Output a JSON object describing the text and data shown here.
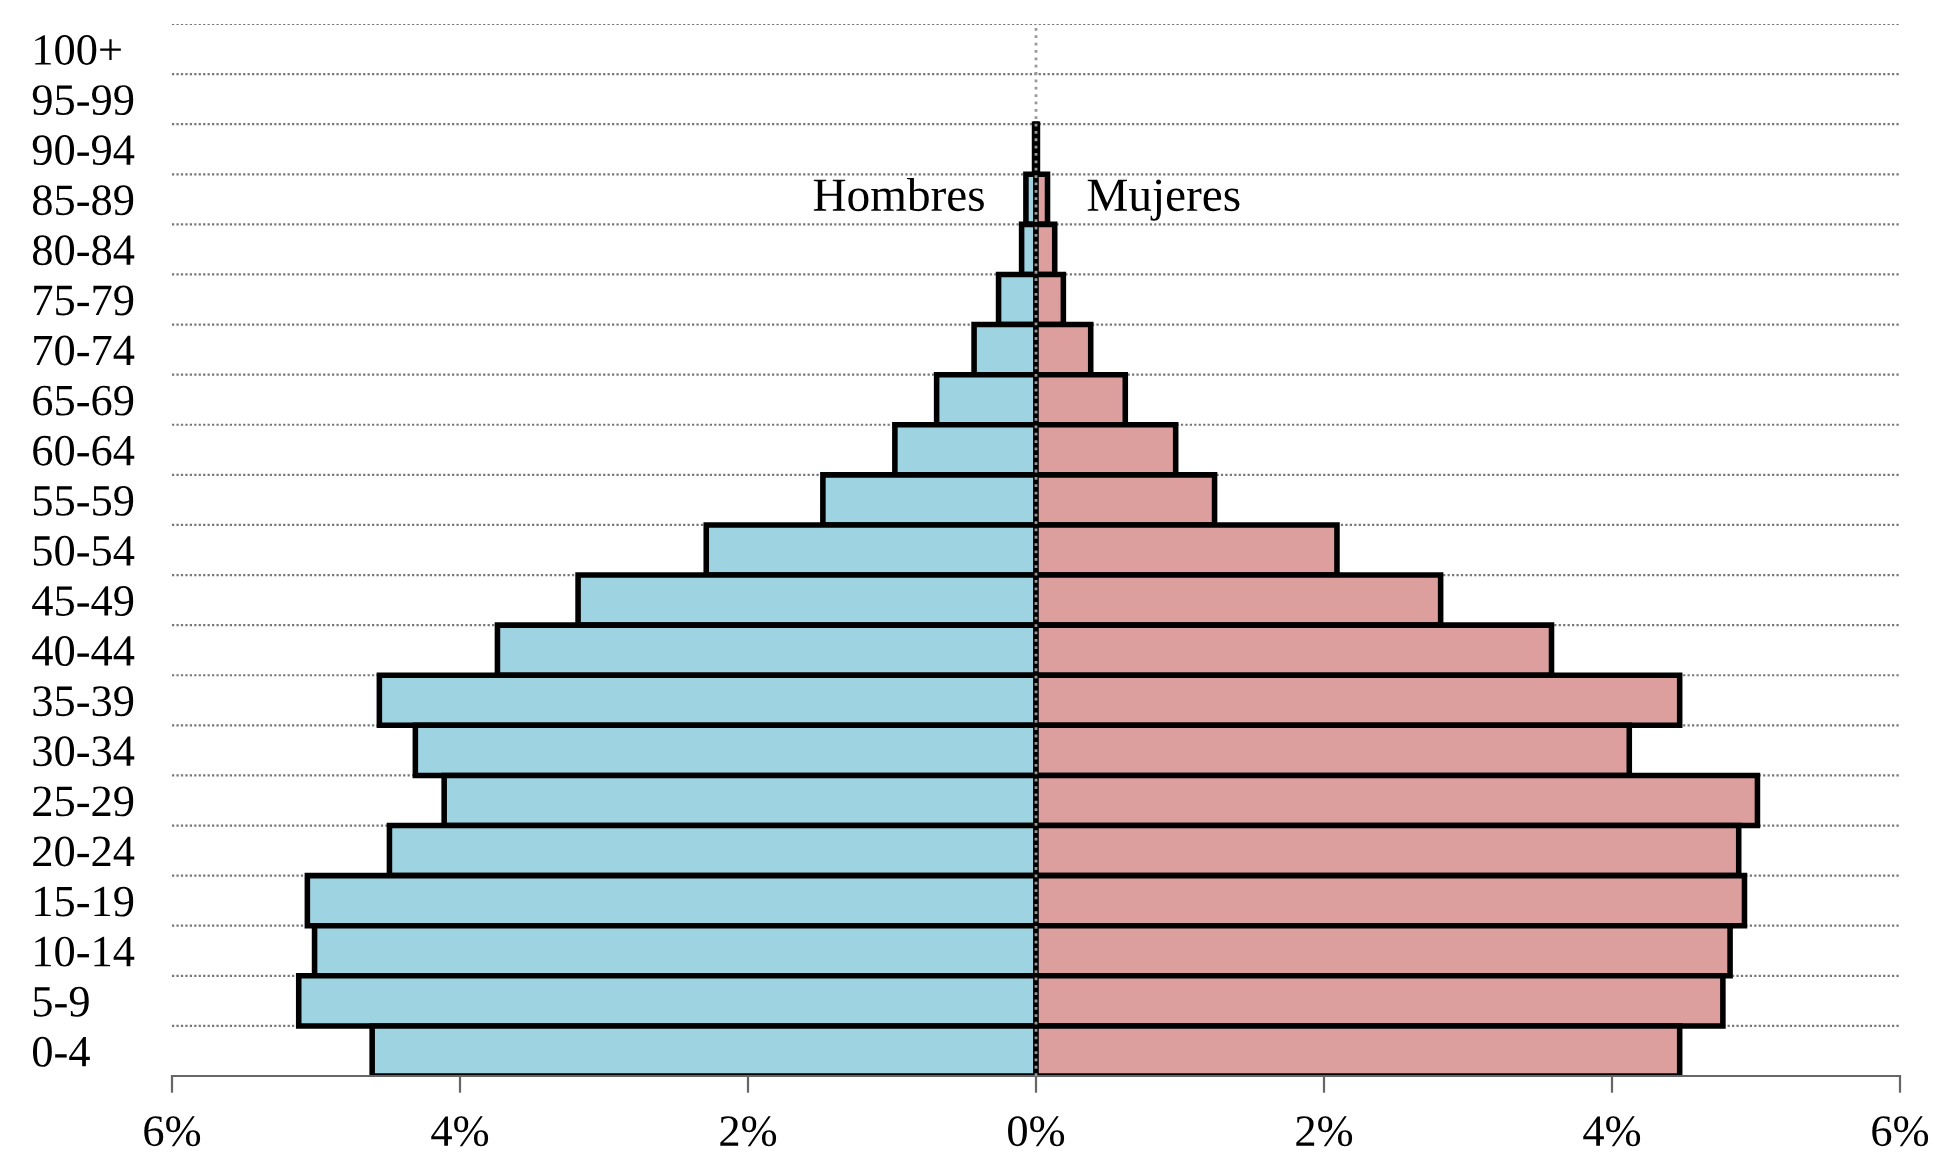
{
  "chart_data": {
    "type": "bar",
    "orientation": "horizontal",
    "stacked": true,
    "categories": [
      "100+",
      "95-99",
      "90-94",
      "85-89",
      "80-84",
      "75-79",
      "70-74",
      "65-69",
      "60-64",
      "55-59",
      "50-54",
      "45-49",
      "40-44",
      "35-39",
      "30-34",
      "25-29",
      "20-24",
      "15-19",
      "10-14",
      "5-9",
      "0-4"
    ],
    "series": [
      {
        "name": "Hombres",
        "color": "#9ed3e2",
        "values": [
          0,
          0,
          -0.01,
          -0.07,
          -0.1,
          -0.26,
          -0.43,
          -0.69,
          -0.98,
          -1.48,
          -2.29,
          -3.18,
          -3.74,
          -4.56,
          -4.31,
          -4.11,
          -4.49,
          -5.06,
          -5.01,
          -5.12,
          -4.61
        ]
      },
      {
        "name": "Mujeres",
        "color": "#dd9e9e",
        "values": [
          0,
          0,
          0.01,
          0.08,
          0.13,
          0.19,
          0.38,
          0.62,
          0.97,
          1.24,
          2.09,
          2.81,
          3.58,
          4.47,
          4.12,
          5.01,
          4.88,
          4.92,
          4.82,
          4.77,
          4.47
        ]
      }
    ],
    "xlim": [
      -6,
      6
    ],
    "xticks": [
      {
        "value": -6,
        "label": "6%"
      },
      {
        "value": -4,
        "label": "4%"
      },
      {
        "value": -2,
        "label": "2%"
      },
      {
        "value": 0,
        "label": "0%"
      },
      {
        "value": 2,
        "label": "2%"
      },
      {
        "value": 4,
        "label": "4%"
      },
      {
        "value": 6,
        "label": "6%"
      }
    ],
    "grid": "y",
    "ref_lines": [
      {
        "axis": "x",
        "value": 0,
        "label": null,
        "line_style": "dotted",
        "color": "#999999"
      }
    ]
  }
}
